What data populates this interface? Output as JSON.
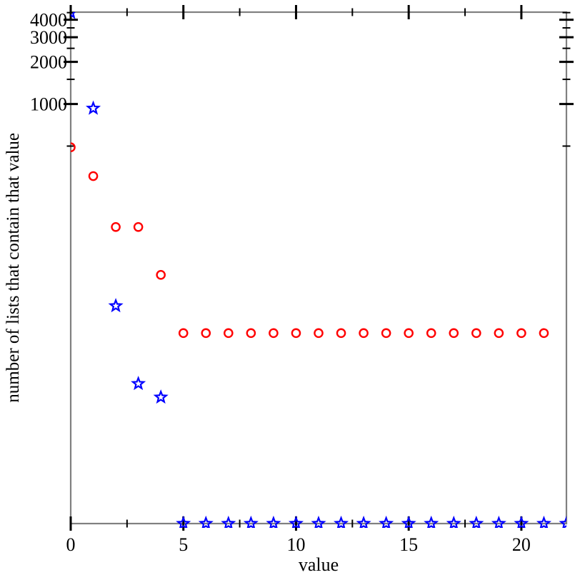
{
  "figure": {
    "background_color": "#ffffff",
    "frame_color": "#808080",
    "tick_color": "#000000",
    "label_color": "#000000"
  },
  "chart_data": {
    "type": "scatter",
    "title": "",
    "xlabel": "value",
    "ylabel": "number of lists that contain that value",
    "grid": "off",
    "legend": "none",
    "x_axis": {
      "scale": "linear",
      "min": 0,
      "max": 22,
      "major_ticks": [
        {
          "value": 0,
          "label": "0"
        },
        {
          "value": 5,
          "label": "5"
        },
        {
          "value": 10,
          "label": "10"
        },
        {
          "value": 15,
          "label": "15"
        },
        {
          "value": 20,
          "label": "20"
        }
      ],
      "minor_ticks": [
        2.5,
        7.5,
        12.5,
        17.5
      ]
    },
    "y_axis": {
      "scale": "log",
      "min": 1,
      "max": 4535,
      "major_ticks": [
        {
          "value": 1000,
          "label": "1000"
        },
        {
          "value": 2000,
          "label": "2000"
        },
        {
          "value": 3000,
          "label": "3000"
        },
        {
          "value": 4000,
          "label": "4000"
        }
      ],
      "minor_ticks": [
        500,
        1500,
        2500,
        3500,
        4500
      ]
    },
    "series": [
      {
        "name": "red-circles",
        "marker": "circle",
        "color": "#ff0000",
        "points": [
          [
            0,
            490
          ],
          [
            1,
            305
          ],
          [
            2,
            132
          ],
          [
            3,
            132
          ],
          [
            4,
            60
          ],
          [
            5,
            23
          ],
          [
            6,
            23
          ],
          [
            7,
            23
          ],
          [
            8,
            23
          ],
          [
            9,
            23
          ],
          [
            10,
            23
          ],
          [
            11,
            23
          ],
          [
            12,
            23
          ],
          [
            13,
            23
          ],
          [
            14,
            23
          ],
          [
            15,
            23
          ],
          [
            16,
            23
          ],
          [
            17,
            23
          ],
          [
            18,
            23
          ],
          [
            19,
            23
          ],
          [
            20,
            23
          ],
          [
            21,
            23
          ]
        ]
      },
      {
        "name": "blue-stars",
        "marker": "star",
        "color": "#0000ff",
        "points": [
          [
            0,
            4500
          ],
          [
            1,
            930
          ],
          [
            2,
            36
          ],
          [
            3,
            10
          ],
          [
            4,
            8
          ],
          [
            5,
            1
          ],
          [
            6,
            1
          ],
          [
            7,
            1
          ],
          [
            8,
            1
          ],
          [
            9,
            1
          ],
          [
            10,
            1
          ],
          [
            11,
            1
          ],
          [
            12,
            1
          ],
          [
            13,
            1
          ],
          [
            14,
            1
          ],
          [
            15,
            1
          ],
          [
            16,
            1
          ],
          [
            17,
            1
          ],
          [
            18,
            1
          ],
          [
            19,
            1
          ],
          [
            20,
            1
          ],
          [
            21,
            1
          ],
          [
            22,
            1
          ]
        ]
      }
    ]
  }
}
